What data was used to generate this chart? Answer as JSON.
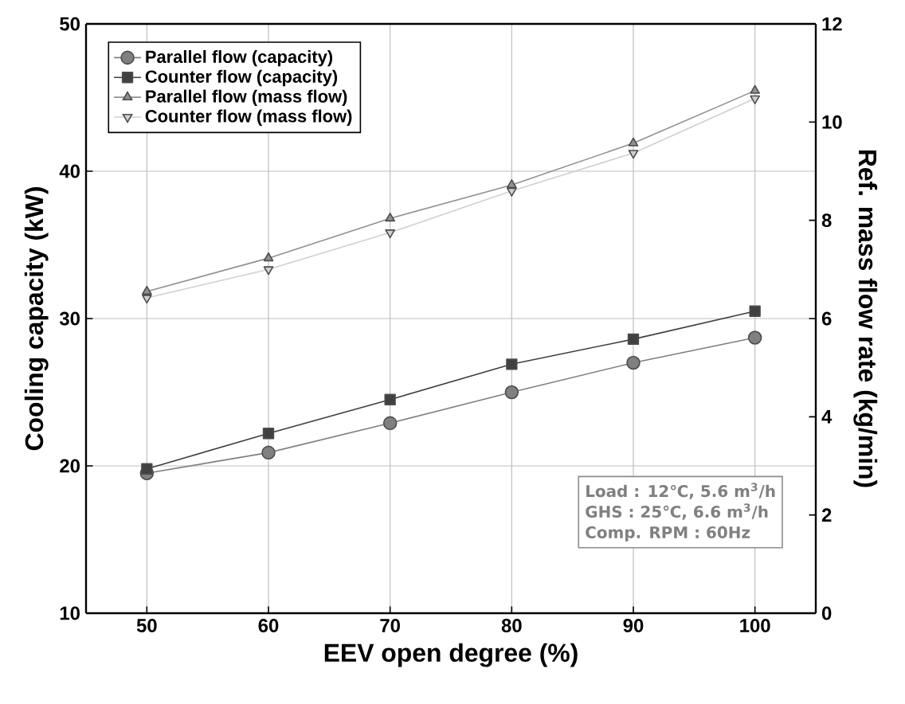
{
  "chart_data": {
    "type": "line",
    "xlabel": "EEV open degree (%)",
    "ylabel": "Cooling capacity (kW)",
    "y2label": "Ref. mass flow rate (kg/min)",
    "x": [
      50,
      60,
      70,
      80,
      90,
      100
    ],
    "xlim": [
      45,
      105
    ],
    "xticks": [
      50,
      60,
      70,
      80,
      90,
      100
    ],
    "ylim": [
      10,
      50
    ],
    "yticks": [
      10,
      20,
      30,
      40,
      50
    ],
    "y2lim": [
      0,
      12
    ],
    "y2ticks": [
      0,
      2,
      4,
      6,
      8,
      10,
      12
    ],
    "grid": true,
    "legend": "top left",
    "line_style": "solid",
    "series": [
      {
        "name": "Parallel flow (capacity)",
        "color": "#808080",
        "marker": "circle",
        "values": [
          19.5,
          20.9,
          22.9,
          25.0,
          27.0,
          28.7
        ]
      },
      {
        "name": "Counter flow (capacity)",
        "color": "#404040",
        "marker": "square",
        "values": [
          19.8,
          22.2,
          24.5,
          26.9,
          28.6,
          30.5
        ]
      },
      {
        "name": "Parallel flow (mass flow)",
        "color": "#909090",
        "marker": "triangle",
        "axis": "y2",
        "values": [
          6.55,
          7.23,
          8.04,
          8.72,
          9.57,
          10.64
        ]
      },
      {
        "name": "Counter flow (mass flow)",
        "color": "#d0d0d0",
        "marker": "triangle down",
        "axis": "y2",
        "values": [
          6.42,
          7.0,
          7.75,
          8.6,
          9.37,
          10.48
        ]
      }
    ],
    "annotations": [
      "Load : 12℃, 5.6 m$^{3}$/h",
      "GHS : 25℃, 6.6 m$^{3}$/h",
      "Comp. RPM : 60Hz"
    ]
  }
}
